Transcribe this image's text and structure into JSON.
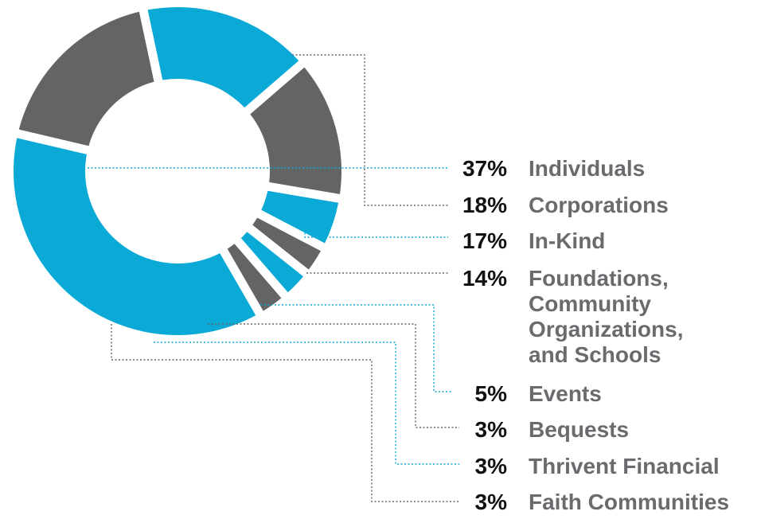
{
  "chart_data": {
    "type": "pie",
    "title": "",
    "colors": {
      "blue": "#0aa9d6",
      "gray": "#636466"
    },
    "slices": [
      {
        "label": "Individuals",
        "value": 37,
        "value_text": "37%",
        "color": "#0aa9d6",
        "label_lines": [
          "Individuals"
        ]
      },
      {
        "label": "Corporations",
        "value": 18,
        "value_text": "18%",
        "color": "#636466",
        "label_lines": [
          "Corporations"
        ]
      },
      {
        "label": "In-Kind",
        "value": 17,
        "value_text": "17%",
        "color": "#0aa9d6",
        "label_lines": [
          "In-Kind"
        ]
      },
      {
        "label": "Foundations, Community Organizations, and Schools",
        "value": 14,
        "value_text": "14%",
        "color": "#636466",
        "label_lines": [
          "Foundations,",
          "Community",
          "Organizations,",
          "and Schools"
        ]
      },
      {
        "label": "Events",
        "value": 5,
        "value_text": "5%",
        "color": "#0aa9d6",
        "label_lines": [
          "Events"
        ]
      },
      {
        "label": "Bequests",
        "value": 3,
        "value_text": "3%",
        "color": "#636466",
        "label_lines": [
          "Bequests"
        ]
      },
      {
        "label": "Thrivent Financial",
        "value": 3,
        "value_text": "3%",
        "color": "#0aa9d6",
        "label_lines": [
          "Thrivent Financial"
        ]
      },
      {
        "label": "Faith Communities",
        "value": 3,
        "value_text": "3%",
        "color": "#636466",
        "label_lines": [
          "Faith Communities"
        ]
      }
    ]
  }
}
